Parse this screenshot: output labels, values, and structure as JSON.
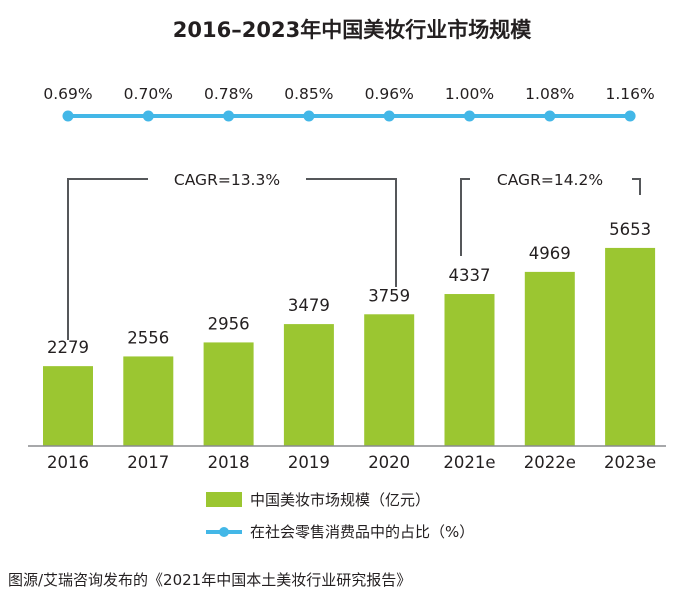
{
  "chart_data": {
    "type": "bar",
    "title": "2016–2023年中国美妆行业市场规模",
    "categories": [
      "2016",
      "2017",
      "2018",
      "2019",
      "2020",
      "2021e",
      "2022e",
      "2023e"
    ],
    "series": [
      {
        "name": "中国美妆市场规模（亿元）",
        "type": "bar",
        "values": [
          2279,
          2556,
          2956,
          3479,
          3759,
          4337,
          4969,
          5653
        ],
        "labels": [
          "2279",
          "2556",
          "2956",
          "3479",
          "3759",
          "4337",
          "4969",
          "5653"
        ]
      },
      {
        "name": "在社会零售消费品中的占比（%）",
        "type": "line",
        "values": [
          0.69,
          0.7,
          0.78,
          0.85,
          0.96,
          1.0,
          1.08,
          1.16
        ],
        "labels": [
          "0.69%",
          "0.70%",
          "0.78%",
          "0.85%",
          "0.96%",
          "1.00%",
          "1.08%",
          "1.16%"
        ]
      }
    ],
    "annotations": [
      {
        "text": "CAGR=13.3%",
        "from": "2016",
        "to": "2020"
      },
      {
        "text": "CAGR=14.2%",
        "from": "2021e",
        "to": "2023e"
      }
    ],
    "ylim": [
      0,
      6000
    ],
    "xlabel": "",
    "ylabel": "",
    "grid": false,
    "legend_position": "bottom"
  },
  "colors": {
    "bar": "#9bc631",
    "line": "#43b7e7",
    "marker": "#43b7e7",
    "bracket": "#55575a",
    "axis": "#8a8c8e",
    "text": "#231f20"
  },
  "source": "图源/艾瑞咨询发布的《2021年中国本土美妆行业研究报告》"
}
